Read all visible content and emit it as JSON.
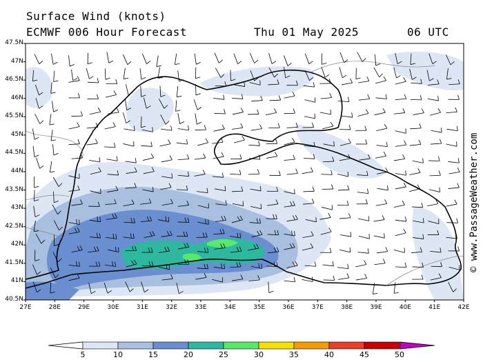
{
  "header": {
    "title": "Surface Wind (knots)",
    "model": "ECMWF 006 Hour Forecast",
    "date": "Thu 01 May 2025",
    "time": "06 UTC"
  },
  "credit": "© www.PassageWeather.com",
  "map": {
    "region": "Black Sea",
    "lat_labels": [
      "47.5N",
      "47N",
      "46.5N",
      "46N",
      "45.5N",
      "45N",
      "44.5N",
      "44N",
      "43.5N",
      "43N",
      "42.5N",
      "42N",
      "41.5N",
      "41N",
      "40.5N"
    ],
    "lon_labels": [
      "27E",
      "28E",
      "29E",
      "30E",
      "31E",
      "32E",
      "33E",
      "34E",
      "35E",
      "36E",
      "37E",
      "38E",
      "39E",
      "40E",
      "41E",
      "42E"
    ]
  },
  "colorbar": {
    "labels": [
      "5",
      "10",
      "15",
      "20",
      "25",
      "30",
      "35",
      "40",
      "45",
      "50"
    ],
    "colors": [
      "#dde6f4",
      "#a8bfe0",
      "#6a8fd0",
      "#2fb8a0",
      "#5ae86a",
      "#f5e000",
      "#f59a00",
      "#e8402a",
      "#c80000",
      "#c000c0"
    ]
  }
}
